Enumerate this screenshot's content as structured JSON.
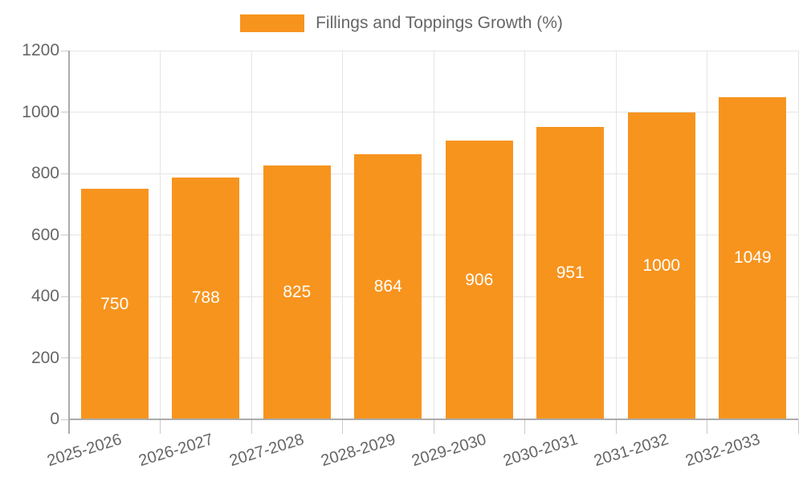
{
  "chart_data": {
    "type": "bar",
    "title": "",
    "legend_label": "Fillings and Toppings Growth (%)",
    "legend_position": "top",
    "categories": [
      "2025-2026",
      "2026-2027",
      "2027-2028",
      "2028-2029",
      "2029-2030",
      "2030-2031",
      "2031-2032",
      "2032-2033"
    ],
    "values": [
      750,
      788,
      825,
      864,
      906,
      951,
      1000,
      1049
    ],
    "value_labels": [
      "750",
      "788",
      "825",
      "864",
      "906",
      "951",
      "1000",
      "1049"
    ],
    "xlabel": "",
    "ylabel": "",
    "ylim": [
      0,
      1200
    ],
    "yticks": [
      0,
      200,
      400,
      600,
      800,
      1000,
      1200
    ],
    "grid": true,
    "colors": {
      "bar": "#f7941e",
      "value_label": "#ffffff",
      "tick_text": "#666666",
      "legend_text": "#666666",
      "gridline": "#e5e5e5",
      "tick_mark": "#c9c9c9",
      "axis_line": "#ababab",
      "background": "#ffffff"
    }
  }
}
